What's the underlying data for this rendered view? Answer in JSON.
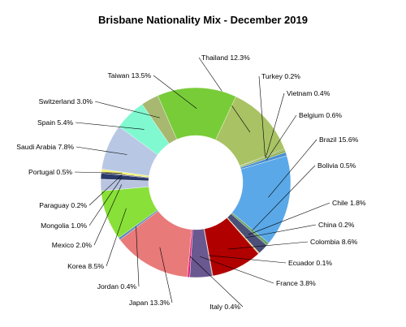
{
  "chart_data": {
    "type": "pie",
    "variant": "donut",
    "title": "Brisbane Nationality Mix - December 2019",
    "slices": [
      {
        "label": "Thailand",
        "value": 12.3,
        "display": "Thailand 12.3%",
        "color": "#a9c264"
      },
      {
        "label": "Turkey",
        "value": 0.2,
        "display": "Turkey 0.2%",
        "color": "#7a9a3c"
      },
      {
        "label": "Vietnam",
        "value": 0.4,
        "display": "Vietnam 0.4%",
        "color": "#8db04a"
      },
      {
        "label": "Belgium",
        "value": 0.6,
        "display": "Belgium 0.6%",
        "color": "#4d8fd0"
      },
      {
        "label": "Brazil",
        "value": 15.6,
        "display": "Brazil 15.6%",
        "color": "#5aa8e8"
      },
      {
        "label": "Bolivia",
        "value": 0.5,
        "display": "Bolivia 0.5%",
        "color": "#6aa56a"
      },
      {
        "label": "Chile",
        "value": 1.8,
        "display": "Chile 1.8%",
        "color": "#4a5078"
      },
      {
        "label": "China",
        "value": 0.2,
        "display": "China 0.2%",
        "color": "#e8d070"
      },
      {
        "label": "Colombia",
        "value": 8.6,
        "display": "Colombia 8.6%",
        "color": "#b00000"
      },
      {
        "label": "Ecuador",
        "value": 0.1,
        "display": "Ecuador 0.1%",
        "color": "#8a3050"
      },
      {
        "label": "France",
        "value": 3.8,
        "display": "France 3.8%",
        "color": "#6a5890"
      },
      {
        "label": "Italy",
        "value": 0.4,
        "display": "Italy 0.4%",
        "color": "#e0207a"
      },
      {
        "label": "Japan",
        "value": 13.3,
        "display": "Japan 13.3%",
        "color": "#e87a7a"
      },
      {
        "label": "Jordan",
        "value": 0.4,
        "display": "Jordan 0.4%",
        "color": "#5a88c0"
      },
      {
        "label": "Korea",
        "value": 8.5,
        "display": "Korea 8.5%",
        "color": "#88e038"
      },
      {
        "label": "Mexico",
        "value": 2.0,
        "display": "Mexico 2.0%",
        "color": "#b8c4e0"
      },
      {
        "label": "Mongolia",
        "value": 1.0,
        "display": "Mongolia 1.0%",
        "color": "#2a3a6a"
      },
      {
        "label": "Paraguay",
        "value": 0.2,
        "display": "Paraguay 0.2%",
        "color": "#1a1a3a"
      },
      {
        "label": "Portugal",
        "value": 0.5,
        "display": "Portugal 0.5%",
        "color": "#f0f070"
      },
      {
        "label": "Saudi Arabia",
        "value": 7.8,
        "display": "Saudi Arabia 7.8%",
        "color": "#b8c8e4"
      },
      {
        "label": "Spain",
        "value": 5.4,
        "display": "Spain 5.4%",
        "color": "#80f8d0"
      },
      {
        "label": "Switzerland",
        "value": 3.0,
        "display": "Switzerland 3.0%",
        "color": "#a8b870"
      },
      {
        "label": "Taiwan",
        "value": 13.5,
        "display": "Taiwan 13.5%",
        "color": "#78cc38"
      }
    ]
  }
}
